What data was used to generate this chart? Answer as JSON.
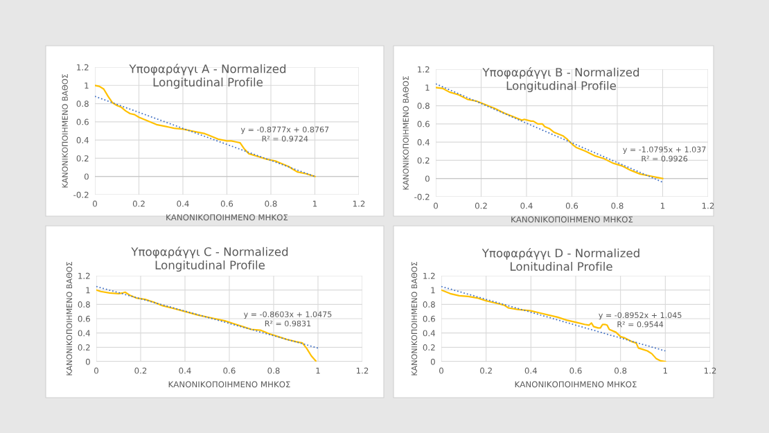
{
  "chart_data": [
    {
      "type": "line",
      "title": "Υποφαράγγι A - Normalized\nLongitudinal Profile",
      "xlabel": "ΚΑΝΟΝΙΚΟΠΟΙΗΜΕΝΟ ΜΗΚΟΣ",
      "ylabel": "ΚΑΝΟΝΙΚΟΠΟΙΗΜΕΝΟ ΒΑΘΟΣ",
      "xlim": [
        0,
        1.2
      ],
      "xticks": [
        0,
        0.2,
        0.4,
        0.6,
        0.8,
        1,
        1.2
      ],
      "ylim": [
        -0.2,
        1.2
      ],
      "yticks": [
        -0.2,
        0,
        0.2,
        0.4,
        0.6,
        0.8,
        1,
        1.2
      ],
      "grid": true,
      "legend": false,
      "series": [
        {
          "color": "#ffc000",
          "line_style": "solid",
          "x": [
            0,
            0.02,
            0.04,
            0.06,
            0.08,
            0.1,
            0.12,
            0.14,
            0.16,
            0.18,
            0.2,
            0.24,
            0.28,
            0.3,
            0.32,
            0.34,
            0.36,
            0.4,
            0.44,
            0.48,
            0.5,
            0.52,
            0.56,
            0.58,
            0.6,
            0.62,
            0.64,
            0.66,
            0.68,
            0.7,
            0.74,
            0.78,
            0.82,
            0.84,
            0.88,
            0.9,
            0.92,
            0.96,
            1.0
          ],
          "values": [
            1.0,
            0.99,
            0.96,
            0.88,
            0.81,
            0.78,
            0.76,
            0.72,
            0.69,
            0.68,
            0.65,
            0.61,
            0.57,
            0.56,
            0.55,
            0.54,
            0.53,
            0.52,
            0.5,
            0.48,
            0.47,
            0.45,
            0.41,
            0.4,
            0.39,
            0.39,
            0.38,
            0.37,
            0.3,
            0.25,
            0.22,
            0.19,
            0.17,
            0.15,
            0.11,
            0.08,
            0.05,
            0.03,
            0.0
          ]
        },
        {
          "color": "#4472c4",
          "line_style": "dotted",
          "x": [
            0,
            1
          ],
          "values": [
            0.88,
            0.0
          ]
        }
      ],
      "annotations": [
        "y = -0.8777x + 0.8767\nR² = 0.9724"
      ]
    },
    {
      "type": "line",
      "title": "Υποφαράγγι B - Normalized\nLongitudinal Profile",
      "xlabel": "ΚΑΝΟΝΙΚΟΠΟΙΗΜΕΝΟ ΜΗΚΟΣ",
      "ylabel": "ΚΑΝΟΝΙΚΟΠΟΙΗΜΕΝΟ ΒΑΘΟΣ",
      "xlim": [
        0,
        1.2
      ],
      "xticks": [
        0,
        0.2,
        0.4,
        0.6,
        0.8,
        1,
        1.2
      ],
      "ylim": [
        -0.2,
        1.2
      ],
      "yticks": [
        -0.2,
        0,
        0.2,
        0.4,
        0.6,
        0.8,
        1,
        1.2
      ],
      "grid": true,
      "legend": false,
      "series": [
        {
          "color": "#ffc000",
          "line_style": "solid",
          "x": [
            0,
            0.03,
            0.06,
            0.1,
            0.14,
            0.18,
            0.22,
            0.26,
            0.3,
            0.34,
            0.38,
            0.39,
            0.42,
            0.43,
            0.45,
            0.47,
            0.48,
            0.5,
            0.52,
            0.56,
            0.58,
            0.6,
            0.62,
            0.66,
            0.7,
            0.74,
            0.78,
            0.82,
            0.86,
            0.9,
            0.94,
            0.98,
            1.0
          ],
          "values": [
            1.0,
            0.99,
            0.95,
            0.92,
            0.87,
            0.85,
            0.81,
            0.77,
            0.72,
            0.68,
            0.64,
            0.65,
            0.63,
            0.63,
            0.6,
            0.6,
            0.57,
            0.55,
            0.51,
            0.47,
            0.43,
            0.38,
            0.34,
            0.3,
            0.25,
            0.22,
            0.17,
            0.14,
            0.09,
            0.05,
            0.03,
            0.01,
            0.0
          ]
        },
        {
          "color": "#4472c4",
          "line_style": "dotted",
          "x": [
            0,
            1
          ],
          "values": [
            1.04,
            -0.04
          ]
        }
      ],
      "annotations": [
        "y = -1.0795x + 1.037\nR² = 0.9926"
      ]
    },
    {
      "type": "line",
      "title": "Υποφαράγγι C - Normalized\nLongitudinal Profile",
      "xlabel": "ΚΑΝΟΝΙΚΟΠΟΙΗΜΕΝΟ ΜΗΚΟΣ",
      "ylabel": "ΚΑΝΟΝΙΚΟΠΟΙΗΜΕΝΟ ΒΑΘΟΣ",
      "xlim": [
        0,
        1.2
      ],
      "xticks": [
        0,
        0.2,
        0.4,
        0.6,
        0.8,
        1,
        1.2
      ],
      "ylim": [
        0,
        1.2
      ],
      "yticks": [
        0,
        0.2,
        0.4,
        0.6,
        0.8,
        1,
        1.2
      ],
      "grid": true,
      "legend": false,
      "series": [
        {
          "color": "#ffc000",
          "line_style": "solid",
          "x": [
            0,
            0.02,
            0.06,
            0.1,
            0.12,
            0.13,
            0.15,
            0.18,
            0.22,
            0.26,
            0.3,
            0.34,
            0.4,
            0.46,
            0.52,
            0.58,
            0.62,
            0.66,
            0.7,
            0.74,
            0.78,
            0.82,
            0.86,
            0.9,
            0.93,
            0.95,
            0.97,
            0.99
          ],
          "values": [
            1.0,
            0.98,
            0.96,
            0.95,
            0.96,
            0.97,
            0.93,
            0.89,
            0.87,
            0.83,
            0.78,
            0.75,
            0.7,
            0.65,
            0.61,
            0.57,
            0.53,
            0.49,
            0.45,
            0.44,
            0.39,
            0.35,
            0.31,
            0.28,
            0.26,
            0.18,
            0.08,
            0.01
          ]
        },
        {
          "color": "#4472c4",
          "line_style": "dotted",
          "x": [
            0,
            1
          ],
          "values": [
            1.05,
            0.19
          ]
        }
      ],
      "annotations": [
        "y = -0.8603x + 1.0475\nR² = 0.9831"
      ]
    },
    {
      "type": "line",
      "title": "Υποφαράγγι D - Normalized\nLonitudinal Profile",
      "xlabel": "ΚΑΝΟΝΙΚΟΠΟΙΗΜΕΝΟ ΜΗΚΟΣ",
      "ylabel": "ΚΑΝΟΝΙΚΟΠΟΙΗΜΕΝΟ ΒΑΘΟΣ",
      "xlim": [
        0,
        1.2
      ],
      "xticks": [
        0,
        0.2,
        0.4,
        0.6,
        0.8,
        1,
        1.2
      ],
      "ylim": [
        0,
        1.2
      ],
      "yticks": [
        0,
        0.2,
        0.4,
        0.6,
        0.8,
        1,
        1.2
      ],
      "grid": true,
      "legend": false,
      "series": [
        {
          "color": "#ffc000",
          "line_style": "solid",
          "x": [
            0,
            0.04,
            0.08,
            0.12,
            0.16,
            0.2,
            0.24,
            0.28,
            0.3,
            0.34,
            0.4,
            0.44,
            0.48,
            0.52,
            0.56,
            0.6,
            0.64,
            0.66,
            0.67,
            0.68,
            0.7,
            0.71,
            0.72,
            0.73,
            0.74,
            0.75,
            0.78,
            0.8,
            0.82,
            0.85,
            0.87,
            0.88,
            0.9,
            0.92,
            0.94,
            0.96,
            0.98,
            1.0
          ],
          "values": [
            1.0,
            0.95,
            0.92,
            0.91,
            0.89,
            0.85,
            0.82,
            0.79,
            0.75,
            0.73,
            0.71,
            0.68,
            0.65,
            0.62,
            0.58,
            0.55,
            0.52,
            0.51,
            0.54,
            0.49,
            0.47,
            0.47,
            0.52,
            0.52,
            0.51,
            0.45,
            0.41,
            0.35,
            0.33,
            0.28,
            0.26,
            0.19,
            0.17,
            0.15,
            0.11,
            0.04,
            0.01,
            0.0
          ]
        },
        {
          "color": "#4472c4",
          "line_style": "dotted",
          "x": [
            0,
            1
          ],
          "values": [
            1.05,
            0.15
          ]
        }
      ],
      "annotations": [
        "y = -0.8952x + 1.045\nR² = 0.9544"
      ]
    }
  ]
}
